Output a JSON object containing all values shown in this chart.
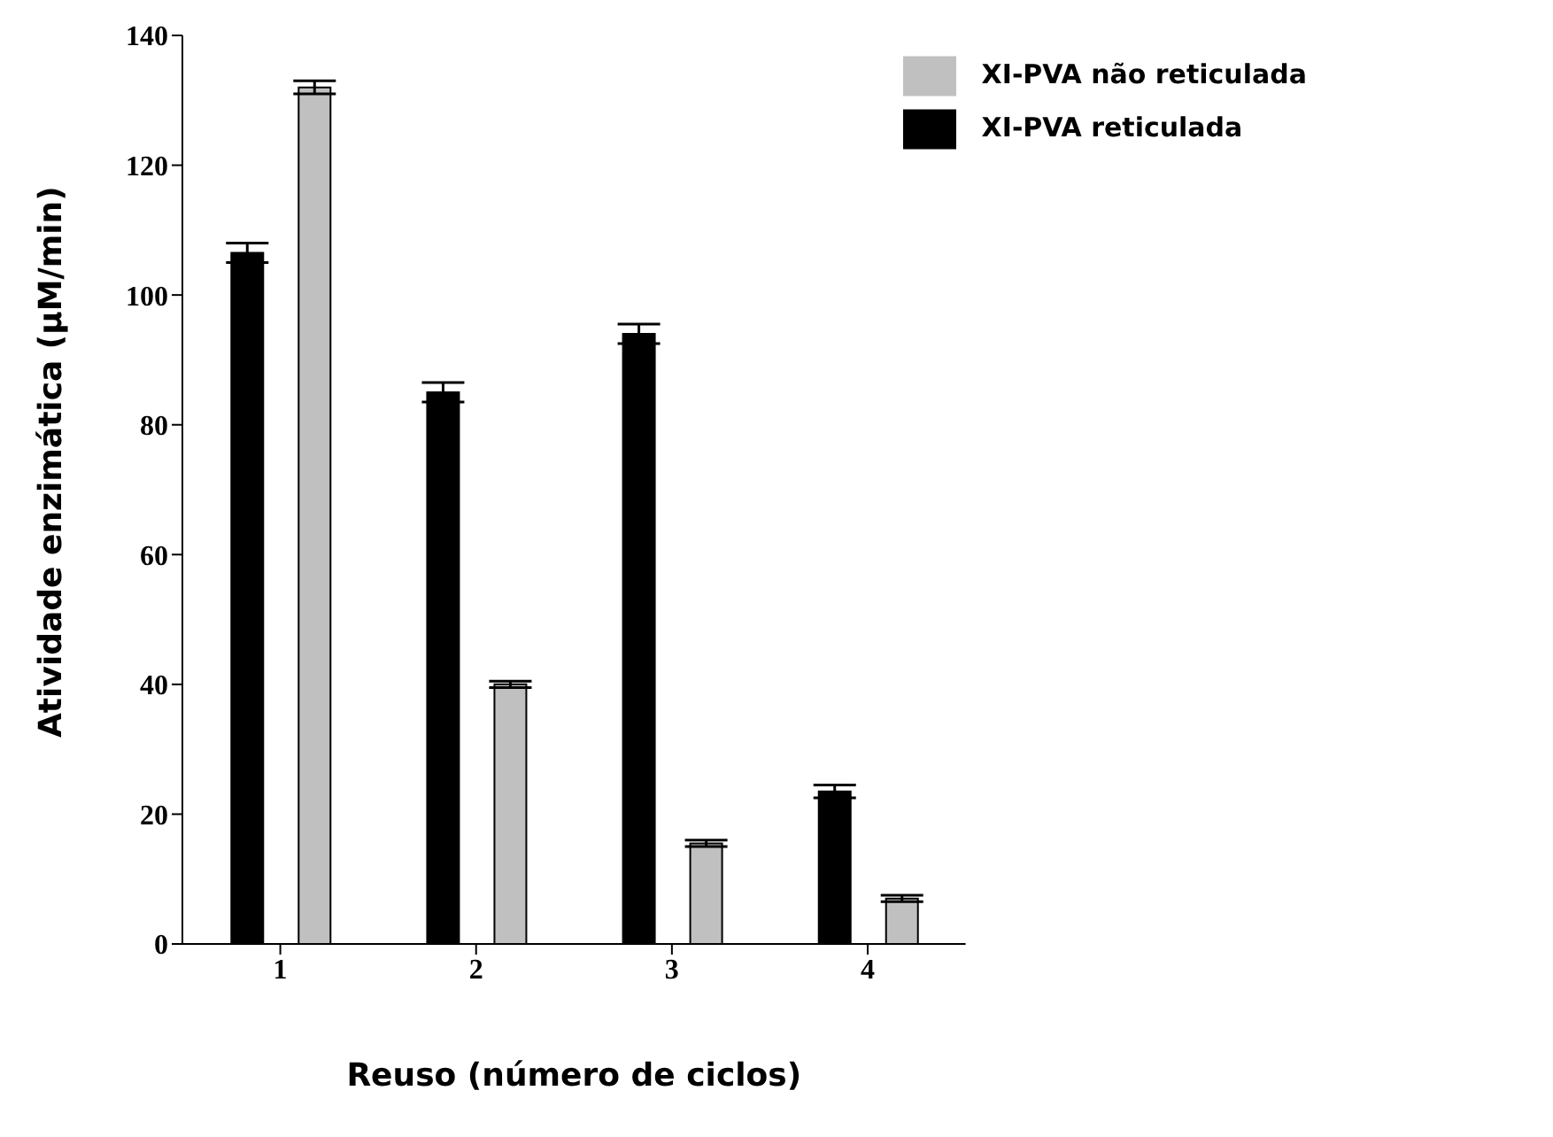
{
  "chart_data": {
    "type": "bar",
    "xlabel": "Reuso (número de ciclos)",
    "ylabel": "Atividade enzimática (µM/min)",
    "categories": [
      "1",
      "2",
      "3",
      "4"
    ],
    "series": [
      {
        "name": "XI-PVA reticulada",
        "color": "#000000",
        "values": [
          106.5,
          85,
          94,
          23.5
        ],
        "errors": [
          1.5,
          1.5,
          1.5,
          1
        ]
      },
      {
        "name": "XI-PVA não reticulada",
        "color": "#c0c0c0",
        "values": [
          132,
          40,
          15.5,
          7
        ],
        "errors": [
          1,
          0.5,
          0.5,
          0.5
        ]
      }
    ],
    "ylim": [
      0,
      140
    ],
    "yticks": [
      0,
      20,
      40,
      60,
      80,
      100,
      120,
      140
    ],
    "grid": false,
    "legend": "top right"
  }
}
